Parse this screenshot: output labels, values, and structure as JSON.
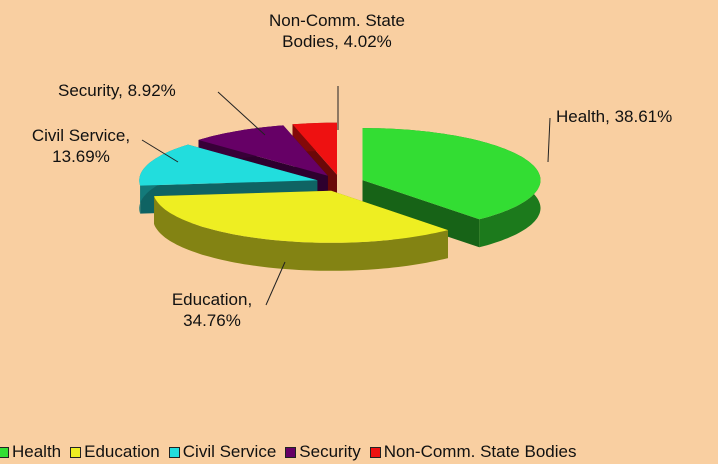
{
  "chart_data": {
    "type": "pie",
    "categories": [
      "Health",
      "Education",
      "Civil Service",
      "Security",
      "Non-Comm. State Bodies"
    ],
    "values": [
      38.61,
      34.76,
      13.69,
      8.92,
      4.02
    ],
    "value_labels": [
      "Health, 38.61%",
      "Education, 34.76%",
      "Civil Service, 13.69%",
      "Security, 8.92%",
      "Non-Comm. State Bodies, 4.02%"
    ],
    "colors": [
      "#33dd33",
      "#eeee22",
      "#22dddd",
      "#660066",
      "#ee1111"
    ],
    "legend": "bottom"
  }
}
